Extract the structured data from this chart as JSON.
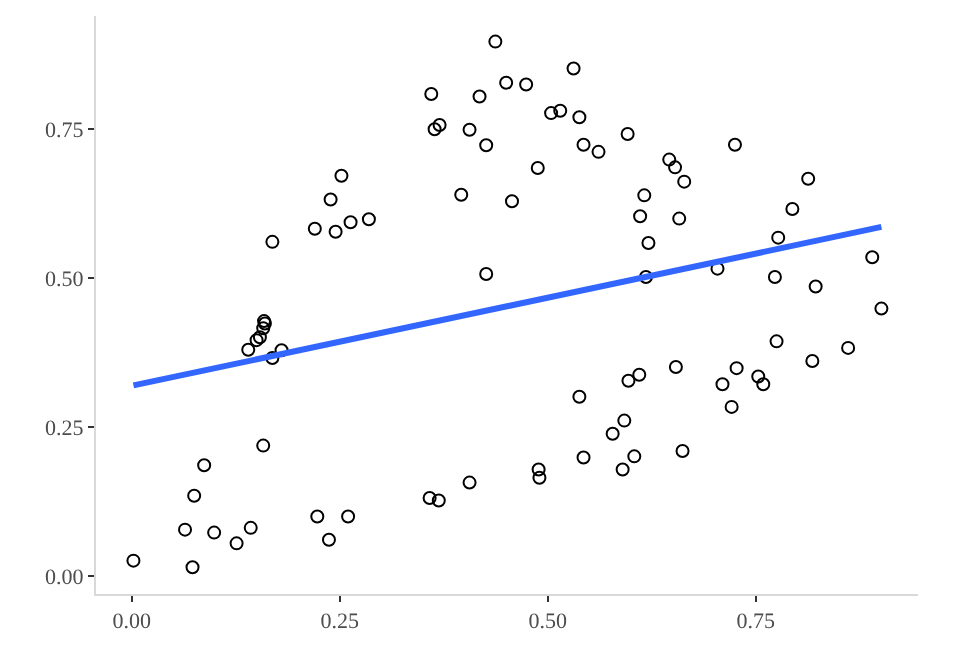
{
  "chart_data": {
    "type": "scatter",
    "marker": "circle",
    "legend": false,
    "xlim": [
      -0.043,
      0.945
    ],
    "ylim": [
      -0.03,
      0.94
    ],
    "xticks": [
      {
        "value": 0,
        "label": "0.00"
      },
      {
        "value": 0.25,
        "label": "0.25"
      },
      {
        "value": 0.5,
        "label": "0.50"
      },
      {
        "value": 0.75,
        "label": "0.75"
      }
    ],
    "yticks": [
      {
        "value": 0,
        "label": "0.00"
      },
      {
        "value": 0.25,
        "label": "0.25"
      },
      {
        "value": 0.5,
        "label": "0.50"
      },
      {
        "value": 0.75,
        "label": "0.75"
      }
    ],
    "series": [
      {
        "color": "#000000",
        "x": [
          0.002,
          0.064,
          0.073,
          0.075,
          0.087,
          0.099,
          0.126,
          0.143,
          0.158,
          0.223,
          0.237,
          0.26,
          0.358,
          0.369,
          0.406,
          0.14,
          0.15,
          0.154,
          0.158,
          0.16,
          0.159,
          0.169,
          0.18,
          0.169,
          0.22,
          0.239,
          0.245,
          0.252,
          0.263,
          0.285,
          0.36,
          0.364,
          0.37,
          0.396,
          0.406,
          0.418,
          0.426,
          0.426,
          0.437,
          0.45,
          0.474,
          0.457,
          0.488,
          0.504,
          0.515,
          0.531,
          0.538,
          0.543,
          0.561,
          0.596,
          0.646,
          0.653,
          0.664,
          0.616,
          0.611,
          0.658,
          0.621,
          0.618,
          0.725,
          0.704,
          0.813,
          0.794,
          0.777,
          0.773,
          0.822,
          0.89,
          0.901,
          0.489,
          0.49,
          0.538,
          0.543,
          0.578,
          0.592,
          0.59,
          0.604,
          0.597,
          0.61,
          0.654,
          0.662,
          0.71,
          0.721,
          0.727,
          0.753,
          0.759,
          0.775,
          0.818,
          0.861
        ],
        "values": [
          0.026,
          0.078,
          0.015,
          0.135,
          0.186,
          0.073,
          0.055,
          0.081,
          0.219,
          0.1,
          0.061,
          0.1,
          0.131,
          0.127,
          0.157,
          0.38,
          0.396,
          0.401,
          0.416,
          0.424,
          0.428,
          0.366,
          0.379,
          0.561,
          0.583,
          0.632,
          0.578,
          0.672,
          0.594,
          0.599,
          0.809,
          0.75,
          0.757,
          0.64,
          0.749,
          0.805,
          0.723,
          0.507,
          0.897,
          0.828,
          0.825,
          0.629,
          0.685,
          0.777,
          0.781,
          0.852,
          0.77,
          0.724,
          0.712,
          0.742,
          0.699,
          0.686,
          0.662,
          0.639,
          0.604,
          0.6,
          0.559,
          0.502,
          0.724,
          0.516,
          0.667,
          0.616,
          0.568,
          0.502,
          0.486,
          0.535,
          0.449,
          0.179,
          0.165,
          0.301,
          0.199,
          0.239,
          0.261,
          0.179,
          0.201,
          0.328,
          0.338,
          0.351,
          0.21,
          0.322,
          0.284,
          0.349,
          0.335,
          0.322,
          0.394,
          0.361,
          0.383
        ]
      },
      {
        "type": "line",
        "color": "#3366ff",
        "marker": "none",
        "x": [
          0.002,
          0.901
        ],
        "values": [
          0.32,
          0.586
        ]
      }
    ]
  }
}
